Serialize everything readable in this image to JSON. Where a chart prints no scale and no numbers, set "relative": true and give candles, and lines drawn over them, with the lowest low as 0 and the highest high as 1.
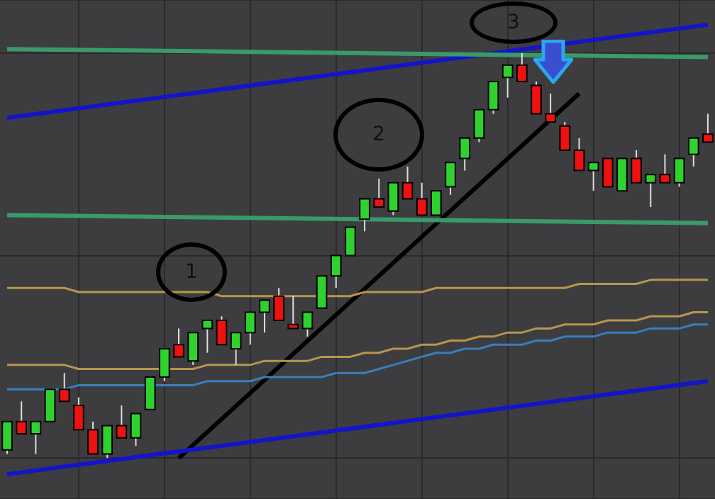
{
  "chart_data": {
    "type": "candlestick",
    "relative": true,
    "grid": true,
    "legend": false,
    "marker": "none",
    "categories": [
      null,
      null,
      null,
      null,
      null,
      null,
      null,
      null,
      null,
      null,
      null,
      null,
      null,
      null,
      null,
      null,
      null,
      null,
      null,
      null,
      null,
      null,
      null,
      null,
      null,
      null,
      null,
      null,
      null,
      null,
      null,
      null,
      null,
      null,
      null,
      null,
      null,
      null,
      null,
      null,
      null,
      null,
      null,
      null,
      null,
      null,
      null,
      null,
      null,
      null
    ],
    "ohlc": [
      [
        0.02,
        0.09,
        0.01,
        0.09
      ],
      [
        0.09,
        0.14,
        0.06,
        0.06
      ],
      [
        0.06,
        0.09,
        0.01,
        0.09
      ],
      [
        0.09,
        0.17,
        0.09,
        0.17
      ],
      [
        0.17,
        0.21,
        0.14,
        0.14
      ],
      [
        0.13,
        0.15,
        0.07,
        0.07
      ],
      [
        0.07,
        0.09,
        0.01,
        0.01
      ],
      [
        0.01,
        0.08,
        0,
        0.08
      ],
      [
        0.08,
        0.13,
        0.05,
        0.05
      ],
      [
        0.05,
        0.11,
        0.03,
        0.11
      ],
      [
        0.12,
        0.2,
        0.12,
        0.2
      ],
      [
        0.2,
        0.27,
        0.19,
        0.27
      ],
      [
        0.28,
        0.32,
        0.25,
        0.25
      ],
      [
        0.24,
        0.31,
        0.23,
        0.31
      ],
      [
        0.32,
        0.34,
        0.26,
        0.34
      ],
      [
        0.34,
        0.35,
        0.28,
        0.28
      ],
      [
        0.27,
        0.31,
        0.23,
        0.31
      ],
      [
        0.31,
        0.36,
        0.28,
        0.36
      ],
      [
        0.36,
        0.39,
        0.31,
        0.39
      ],
      [
        0.4,
        0.42,
        0.34,
        0.34
      ],
      [
        0.33,
        0.4,
        0.32,
        0.32
      ],
      [
        0.32,
        0.36,
        0.3,
        0.36
      ],
      [
        0.37,
        0.45,
        0.37,
        0.45
      ],
      [
        0.45,
        0.5,
        0.42,
        0.5
      ],
      [
        0.5,
        0.57,
        0.5,
        0.57
      ],
      [
        0.59,
        0.64,
        0.56,
        0.64
      ],
      [
        0.64,
        0.69,
        0.62,
        0.62
      ],
      [
        0.61,
        0.68,
        0.6,
        0.68
      ],
      [
        0.68,
        0.72,
        0.64,
        0.64
      ],
      [
        0.64,
        0.68,
        0.6,
        0.6
      ],
      [
        0.6,
        0.66,
        0.6,
        0.66
      ],
      [
        0.67,
        0.73,
        0.65,
        0.73
      ],
      [
        0.74,
        0.79,
        0.71,
        0.79
      ],
      [
        0.79,
        0.86,
        0.78,
        0.86
      ],
      [
        0.86,
        0.93,
        0.85,
        0.93
      ],
      [
        0.94,
        0.97,
        0.89,
        0.97
      ],
      [
        0.97,
        1,
        0.93,
        0.93
      ],
      [
        0.92,
        0.93,
        0.85,
        0.85
      ],
      [
        0.85,
        0.9,
        0.83,
        0.83
      ],
      [
        0.82,
        0.83,
        0.76,
        0.76
      ],
      [
        0.76,
        0.79,
        0.71,
        0.71
      ],
      [
        0.71,
        0.73,
        0.66,
        0.73
      ],
      [
        0.74,
        0.74,
        0.67,
        0.67
      ],
      [
        0.66,
        0.74,
        0.66,
        0.74
      ],
      [
        0.74,
        0.76,
        0.68,
        0.68
      ],
      [
        0.68,
        0.7,
        0.62,
        0.7
      ],
      [
        0.7,
        0.75,
        0.68,
        0.68
      ],
      [
        0.68,
        0.74,
        0.67,
        0.74
      ],
      [
        0.75,
        0.79,
        0.72,
        0.79
      ],
      [
        0.8,
        0.85,
        0.78,
        0.78
      ]
    ],
    "series": [
      {
        "type": "line",
        "color": "#b8964a",
        "values": [
          0.42,
          0.42,
          0.42,
          0.42,
          0.42,
          0.41,
          0.41,
          0.41,
          0.41,
          0.41,
          0.41,
          0.41,
          0.41,
          0.41,
          0.41,
          0.4,
          0.4,
          0.4,
          0.4,
          0.4,
          0.4,
          0.4,
          0.4,
          0.4,
          0.4,
          0.41,
          0.41,
          0.41,
          0.41,
          0.41,
          0.42,
          0.42,
          0.42,
          0.42,
          0.42,
          0.42,
          0.42,
          0.42,
          0.42,
          0.42,
          0.43,
          0.43,
          0.43,
          0.43,
          0.43,
          0.44,
          0.44,
          0.44,
          0.44,
          0.44
        ]
      },
      {
        "type": "line",
        "color": "#b8964a",
        "values": [
          0.23,
          0.23,
          0.23,
          0.23,
          0.23,
          0.22,
          0.22,
          0.22,
          0.22,
          0.22,
          0.22,
          0.22,
          0.22,
          0.22,
          0.23,
          0.23,
          0.23,
          0.23,
          0.24,
          0.24,
          0.24,
          0.24,
          0.25,
          0.25,
          0.25,
          0.26,
          0.26,
          0.27,
          0.27,
          0.28,
          0.28,
          0.29,
          0.29,
          0.3,
          0.3,
          0.31,
          0.31,
          0.32,
          0.32,
          0.33,
          0.33,
          0.33,
          0.34,
          0.34,
          0.34,
          0.35,
          0.35,
          0.35,
          0.36,
          0.36
        ]
      },
      {
        "type": "line",
        "color": "#3a7ec0",
        "values": [
          0.17,
          0.17,
          0.17,
          0.17,
          0.17,
          0.18,
          0.18,
          0.18,
          0.18,
          0.18,
          0.18,
          0.18,
          0.18,
          0.18,
          0.19,
          0.19,
          0.19,
          0.19,
          0.2,
          0.2,
          0.2,
          0.2,
          0.2,
          0.21,
          0.21,
          0.21,
          0.22,
          0.23,
          0.24,
          0.25,
          0.26,
          0.26,
          0.27,
          0.27,
          0.28,
          0.28,
          0.28,
          0.29,
          0.29,
          0.3,
          0.3,
          0.3,
          0.31,
          0.31,
          0.31,
          0.32,
          0.32,
          0.32,
          0.33,
          0.33
        ]
      },
      {
        "type": "line",
        "color": "#3a9a6a",
        "values": [
          1.01,
          null,
          null,
          null,
          null,
          null,
          null,
          null,
          null,
          null,
          null,
          null,
          null,
          null,
          null,
          null,
          null,
          null,
          null,
          null,
          null,
          null,
          null,
          null,
          null,
          null,
          null,
          null,
          null,
          null,
          null,
          null,
          null,
          null,
          null,
          null,
          null,
          null,
          null,
          null,
          null,
          null,
          null,
          null,
          null,
          null,
          null,
          null,
          null,
          0.99
        ]
      },
      {
        "type": "line",
        "color": "#3a9a6a",
        "values": [
          0.6,
          null,
          null,
          null,
          null,
          null,
          null,
          null,
          null,
          null,
          null,
          null,
          null,
          null,
          null,
          null,
          null,
          null,
          null,
          null,
          null,
          null,
          null,
          null,
          null,
          null,
          null,
          null,
          null,
          null,
          null,
          null,
          null,
          null,
          null,
          null,
          null,
          null,
          null,
          null,
          null,
          null,
          null,
          null,
          null,
          null,
          null,
          null,
          null,
          0.58
        ]
      },
      {
        "type": "line",
        "color": "#1414c8",
        "values": [
          0.84,
          null,
          null,
          null,
          null,
          null,
          null,
          null,
          null,
          null,
          null,
          null,
          null,
          null,
          null,
          null,
          null,
          null,
          null,
          null,
          null,
          null,
          null,
          null,
          null,
          null,
          null,
          null,
          null,
          null,
          null,
          null,
          null,
          null,
          null,
          null,
          null,
          null,
          null,
          null,
          null,
          null,
          null,
          null,
          null,
          null,
          null,
          null,
          null,
          1.07
        ]
      },
      {
        "type": "line",
        "color": "#1414c8",
        "values": [
          -0.04,
          null,
          null,
          null,
          null,
          null,
          null,
          null,
          null,
          null,
          null,
          null,
          null,
          null,
          null,
          null,
          null,
          null,
          null,
          null,
          null,
          null,
          null,
          null,
          null,
          null,
          null,
          null,
          null,
          null,
          null,
          null,
          null,
          null,
          null,
          null,
          null,
          null,
          null,
          null,
          null,
          null,
          null,
          null,
          null,
          null,
          null,
          null,
          null,
          0.19
        ]
      },
      {
        "type": "line",
        "color": "#000000",
        "values": [
          null,
          null,
          null,
          null,
          null,
          null,
          null,
          null,
          null,
          null,
          null,
          null,
          0,
          null,
          null,
          null,
          null,
          null,
          null,
          null,
          null,
          null,
          null,
          null,
          null,
          null,
          null,
          null,
          null,
          null,
          null,
          null,
          null,
          null,
          null,
          null,
          null,
          null,
          null,
          null,
          0.9,
          null,
          null,
          null,
          null,
          null,
          null,
          null,
          null,
          null
        ]
      }
    ],
    "annotations": [
      "1",
      "2",
      "3"
    ]
  }
}
